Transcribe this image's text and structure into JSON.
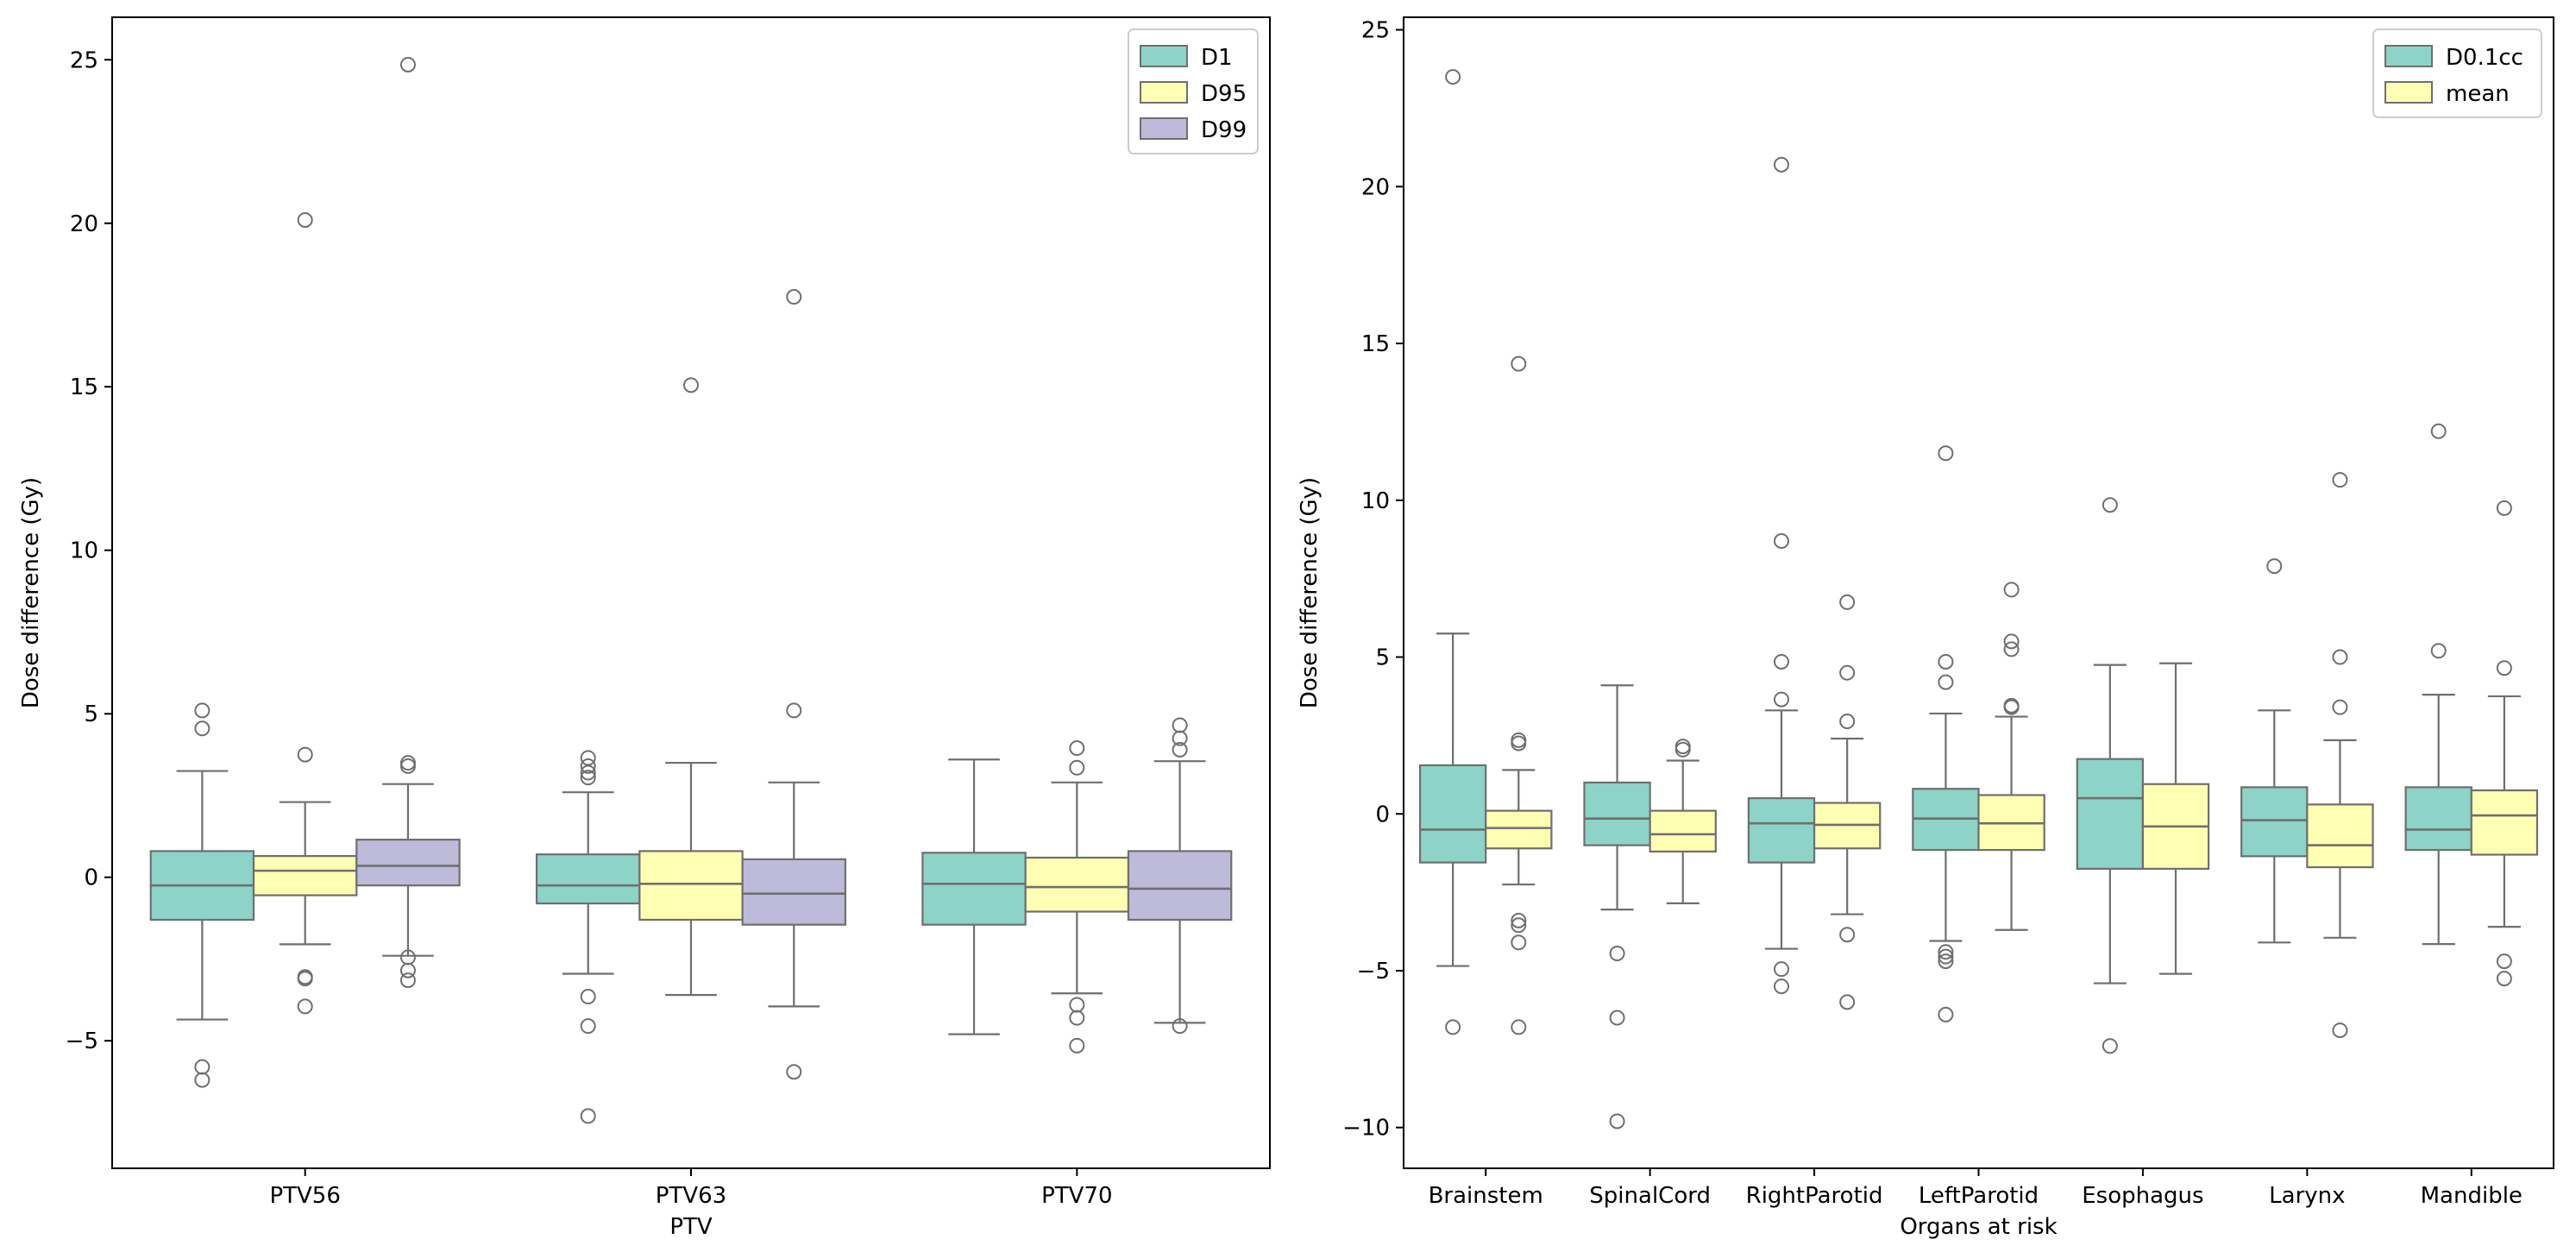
{
  "chart_data": [
    {
      "type": "box",
      "title": "",
      "xlabel": "PTV",
      "ylabel": "Dose difference (Gy)",
      "ylim": [
        -8.9,
        26.3
      ],
      "yticks": [
        -5,
        0,
        5,
        10,
        15,
        20,
        25
      ],
      "categories": [
        "PTV56",
        "PTV63",
        "PTV70"
      ],
      "legend": {
        "position": "top-right",
        "entries": [
          "D1",
          "D95",
          "D99"
        ]
      },
      "series": [
        {
          "name": "D1",
          "color": "#8dd3c7",
          "boxes": [
            {
              "q1": -1.3,
              "median": -0.25,
              "q3": 0.8,
              "whisker_low": -4.35,
              "whisker_high": 3.25,
              "outliers": [
                5.1,
                4.55,
                -5.8,
                -6.2
              ]
            },
            {
              "q1": -0.8,
              "median": -0.25,
              "q3": 0.7,
              "whisker_low": -2.95,
              "whisker_high": 2.6,
              "outliers": [
                3.65,
                3.4,
                3.2,
                3.05,
                -3.65,
                -4.55,
                -7.3
              ]
            },
            {
              "q1": -1.45,
              "median": -0.2,
              "q3": 0.75,
              "whisker_low": -4.8,
              "whisker_high": 3.6,
              "outliers": []
            }
          ]
        },
        {
          "name": "D95",
          "color": "#ffffb3",
          "boxes": [
            {
              "q1": -0.55,
              "median": 0.2,
              "q3": 0.65,
              "whisker_low": -2.05,
              "whisker_high": 2.3,
              "outliers": [
                20.1,
                3.75,
                -3.05,
                -3.1,
                -3.95
              ]
            },
            {
              "q1": -1.3,
              "median": -0.2,
              "q3": 0.8,
              "whisker_low": -3.6,
              "whisker_high": 3.5,
              "outliers": [
                15.05
              ]
            },
            {
              "q1": -1.05,
              "median": -0.3,
              "q3": 0.6,
              "whisker_low": -3.55,
              "whisker_high": 2.9,
              "outliers": [
                3.95,
                3.35,
                -3.9,
                -4.3,
                -5.15
              ]
            }
          ]
        },
        {
          "name": "D99",
          "color": "#bebada",
          "boxes": [
            {
              "q1": -0.25,
              "median": 0.35,
              "q3": 1.15,
              "whisker_low": -2.4,
              "whisker_high": 2.85,
              "outliers": [
                24.85,
                3.5,
                3.4,
                -2.45,
                -2.85,
                -3.15
              ]
            },
            {
              "q1": -1.45,
              "median": -0.5,
              "q3": 0.55,
              "whisker_low": -3.95,
              "whisker_high": 2.9,
              "outliers": [
                17.75,
                5.1,
                -5.95
              ]
            },
            {
              "q1": -1.3,
              "median": -0.35,
              "q3": 0.8,
              "whisker_low": -4.45,
              "whisker_high": 3.55,
              "outliers": [
                4.65,
                4.25,
                3.9,
                -4.55
              ]
            }
          ]
        }
      ]
    },
    {
      "type": "box",
      "title": "",
      "xlabel": "Organs at risk",
      "ylabel": "Dose difference (Gy)",
      "ylim": [
        -11.3,
        25.4
      ],
      "yticks": [
        -10,
        -5,
        0,
        5,
        10,
        15,
        20,
        25
      ],
      "categories": [
        "Brainstem",
        "SpinalCord",
        "RightParotid",
        "LeftParotid",
        "Esophagus",
        "Larynx",
        "Mandible"
      ],
      "legend": {
        "position": "top-right",
        "entries": [
          "D0.1cc",
          "mean"
        ]
      },
      "series": [
        {
          "name": "D0.1cc",
          "color": "#8dd3c7",
          "boxes": [
            {
              "q1": -1.55,
              "median": -0.5,
              "q3": 1.55,
              "whisker_low": -4.85,
              "whisker_high": 5.75,
              "outliers": [
                23.5,
                -6.8
              ]
            },
            {
              "q1": -1.0,
              "median": -0.15,
              "q3": 1.0,
              "whisker_low": -3.05,
              "whisker_high": 4.1,
              "outliers": [
                -4.45,
                -6.5,
                -9.8
              ]
            },
            {
              "q1": -1.55,
              "median": -0.3,
              "q3": 0.5,
              "whisker_low": -4.3,
              "whisker_high": 3.3,
              "outliers": [
                20.7,
                8.7,
                4.85,
                3.65,
                -4.95,
                -5.5
              ]
            },
            {
              "q1": -1.15,
              "median": -0.15,
              "q3": 0.8,
              "whisker_low": -4.05,
              "whisker_high": 3.2,
              "outliers": [
                11.5,
                4.85,
                4.2,
                -4.4,
                -4.55,
                -4.7,
                -6.4
              ]
            },
            {
              "q1": -1.75,
              "median": 0.5,
              "q3": 1.75,
              "whisker_low": -5.4,
              "whisker_high": 4.75,
              "outliers": [
                9.85,
                -7.4
              ]
            },
            {
              "q1": -1.35,
              "median": -0.2,
              "q3": 0.85,
              "whisker_low": -4.1,
              "whisker_high": 3.3,
              "outliers": [
                7.9
              ]
            },
            {
              "q1": -1.15,
              "median": -0.5,
              "q3": 0.85,
              "whisker_low": -4.15,
              "whisker_high": 3.8,
              "outliers": [
                12.2,
                5.2
              ]
            }
          ]
        },
        {
          "name": "mean",
          "color": "#ffffb3",
          "boxes": [
            {
              "q1": -1.1,
              "median": -0.45,
              "q3": 0.1,
              "whisker_low": -2.25,
              "whisker_high": 1.4,
              "outliers": [
                14.35,
                2.35,
                2.25,
                -3.4,
                -3.55,
                -4.1,
                -6.8
              ]
            },
            {
              "q1": -1.2,
              "median": -0.65,
              "q3": 0.1,
              "whisker_low": -2.85,
              "whisker_high": 1.7,
              "outliers": [
                2.15,
                2.05
              ]
            },
            {
              "q1": -1.1,
              "median": -0.35,
              "q3": 0.35,
              "whisker_low": -3.2,
              "whisker_high": 2.4,
              "outliers": [
                6.75,
                4.5,
                2.95,
                -3.85,
                -6.0
              ]
            },
            {
              "q1": -1.15,
              "median": -0.3,
              "q3": 0.6,
              "whisker_low": -3.7,
              "whisker_high": 3.1,
              "outliers": [
                7.15,
                5.5,
                5.25,
                3.45,
                3.4
              ]
            },
            {
              "q1": -1.75,
              "median": -0.4,
              "q3": 0.95,
              "whisker_low": -5.1,
              "whisker_high": 4.8,
              "outliers": []
            },
            {
              "q1": -1.7,
              "median": -1.0,
              "q3": 0.3,
              "whisker_low": -3.95,
              "whisker_high": 2.35,
              "outliers": [
                10.65,
                5.0,
                3.4,
                -6.9
              ]
            },
            {
              "q1": -1.3,
              "median": -0.05,
              "q3": 0.75,
              "whisker_low": -3.6,
              "whisker_high": 3.75,
              "outliers": [
                9.75,
                4.65,
                -4.7,
                -5.25
              ]
            }
          ]
        }
      ]
    }
  ]
}
